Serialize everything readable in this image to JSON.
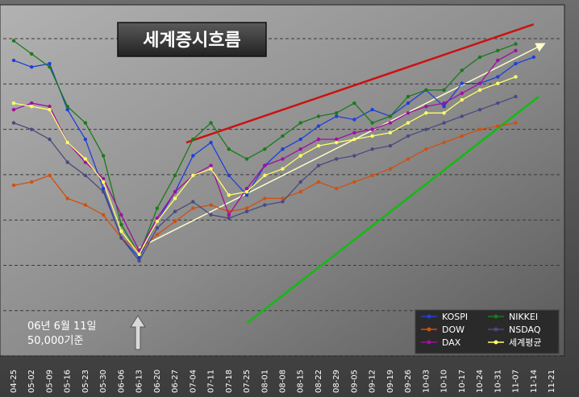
{
  "chart_data": {
    "type": "line",
    "title": "세계증시흐름",
    "annotation": [
      "06년 6월 11일",
      "50,000기준"
    ],
    "grid": true,
    "legend_position": "bottom-right",
    "xlabel": "",
    "ylabel": "",
    "categories": [
      "04-25",
      "05-02",
      "05-09",
      "05-16",
      "05-23",
      "05-30",
      "06-06",
      "06-13",
      "06-20",
      "06-27",
      "07-04",
      "07-11",
      "07-18",
      "07-25",
      "08-01",
      "08-08",
      "08-15",
      "08-22",
      "08-29",
      "09-05",
      "09-12",
      "09-19",
      "09-26",
      "10-03",
      "10-10",
      "10-17",
      "10-24",
      "10-31",
      "11-07",
      "11-14",
      "11-21"
    ],
    "ylim": [
      0,
      100
    ],
    "series": [
      {
        "name": "KOSPI",
        "color": "#1f3fd8",
        "values": [
          87,
          85,
          86,
          72,
          63,
          48,
          33,
          27,
          38,
          47,
          58,
          62,
          52,
          46,
          55,
          60,
          63,
          67,
          70,
          69,
          72,
          70,
          74,
          78,
          73,
          80,
          80,
          82,
          86,
          88,
          null
        ]
      },
      {
        "name": "NIKKEI",
        "color": "#1a7a1a",
        "values": [
          93,
          89,
          85,
          73,
          68,
          58,
          37,
          28,
          42,
          52,
          63,
          68,
          60,
          57,
          60,
          64,
          68,
          70,
          71,
          74,
          68,
          70,
          76,
          78,
          78,
          84,
          88,
          90,
          92,
          null,
          null
        ]
      },
      {
        "name": "DOW",
        "color": "#d05010",
        "values": [
          49,
          50,
          52,
          45,
          43,
          40,
          33,
          29,
          34,
          38,
          42,
          43,
          41,
          42,
          45,
          45,
          47,
          50,
          48,
          50,
          52,
          54,
          57,
          60,
          62,
          64,
          66,
          67,
          68,
          null,
          null
        ]
      },
      {
        "name": "NSDAQ",
        "color": "#4a4a80",
        "values": [
          68,
          66,
          63,
          56,
          52,
          47,
          33,
          26,
          36,
          41,
          44,
          40,
          39,
          41,
          43,
          44,
          50,
          55,
          57,
          58,
          60,
          61,
          64,
          66,
          68,
          70,
          72,
          74,
          76,
          null,
          null
        ]
      },
      {
        "name": "DAX",
        "color": "#a010a0",
        "values": [
          72,
          74,
          73,
          62,
          56,
          51,
          40,
          29,
          39,
          47,
          52,
          55,
          40,
          48,
          55,
          57,
          60,
          63,
          63,
          65,
          66,
          68,
          71,
          73,
          74,
          77,
          80,
          87,
          90,
          null,
          null
        ]
      },
      {
        "name": "세계평균",
        "color": "#ffff66",
        "values": [
          74,
          73,
          72,
          62,
          57,
          50,
          35,
          28,
          38,
          45,
          52,
          54,
          46,
          47,
          52,
          54,
          58,
          61,
          62,
          63,
          64,
          65,
          68,
          71,
          71,
          75,
          78,
          80,
          82,
          null,
          null
        ]
      }
    ],
    "trendlines": [
      {
        "color": "#cc1111",
        "from": {
          "x": "07-01",
          "y": 62
        },
        "to": {
          "x": "11-14",
          "y": 98
        }
      },
      {
        "color": "#ffffcc",
        "from": {
          "x": "06-13",
          "y": 30
        },
        "to": {
          "x": "11-18",
          "y": 92
        }
      },
      {
        "color": "#11bb11",
        "from": {
          "x": "07-25",
          "y": 7
        },
        "to": {
          "x": "11-16",
          "y": 76
        }
      }
    ]
  }
}
